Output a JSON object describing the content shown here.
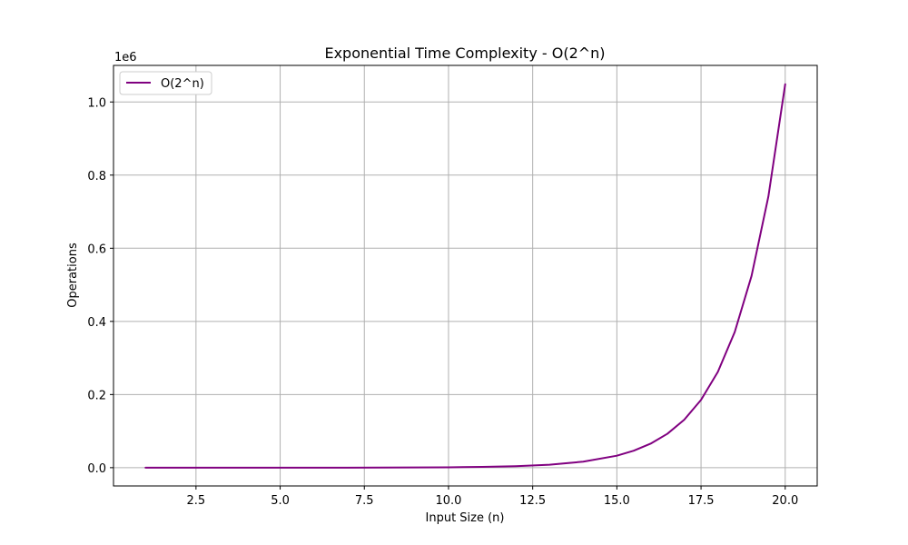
{
  "chart_data": {
    "type": "line",
    "title": "Exponential Time Complexity - O(2^n)",
    "xlabel": "Input Size (n)",
    "ylabel": "Operations",
    "y_offset_label": "1e6",
    "xlim": [
      0.05,
      20.95
    ],
    "ylim": [
      -0.05,
      1.1
    ],
    "x_ticks": [
      2.5,
      5.0,
      7.5,
      10.0,
      12.5,
      15.0,
      17.5,
      20.0
    ],
    "x_tick_labels": [
      "2.5",
      "5.0",
      "7.5",
      "10.0",
      "12.5",
      "15.0",
      "17.5",
      "20.0"
    ],
    "y_ticks": [
      0.0,
      0.2,
      0.4,
      0.6,
      0.8,
      1.0
    ],
    "y_tick_labels": [
      "0.0",
      "0.2",
      "0.4",
      "0.6",
      "0.8",
      "1.0"
    ],
    "grid": true,
    "legend_position": "top-left",
    "series": [
      {
        "name": "O(2^n)",
        "color": "#800080",
        "x": [
          1,
          2,
          3,
          4,
          5,
          6,
          7,
          8,
          9,
          10,
          11,
          12,
          13,
          14,
          15,
          15.5,
          16,
          16.5,
          17,
          17.5,
          18,
          18.5,
          19,
          19.5,
          20
        ],
        "y": [
          2e-06,
          4e-06,
          8e-06,
          1.6e-05,
          3.2e-05,
          6.4e-05,
          0.000128,
          0.000256,
          0.000512,
          0.001024,
          0.002048,
          0.004096,
          0.008192,
          0.016384,
          0.032768,
          0.046341,
          0.065536,
          0.092682,
          0.131072,
          0.185364,
          0.262144,
          0.370728,
          0.524288,
          0.741455,
          1.048576
        ]
      }
    ]
  }
}
